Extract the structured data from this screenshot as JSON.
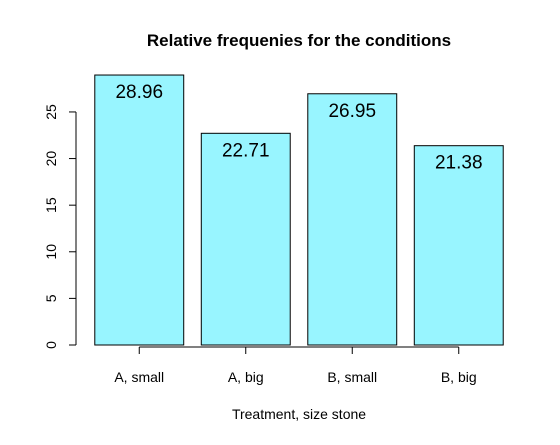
{
  "chart_data": {
    "type": "bar",
    "title": "Relative frequenies for the conditions",
    "xlabel": "Treatment, size stone",
    "ylabel": "",
    "categories": [
      "A, small",
      "A, big",
      "B, small",
      "B, big"
    ],
    "values": [
      28.96,
      22.71,
      26.95,
      21.38
    ],
    "data_labels": [
      "28.96",
      "22.71",
      "26.95",
      "21.38"
    ],
    "yticks": [
      0,
      5,
      10,
      15,
      20,
      25
    ],
    "ytick_labels": [
      "0",
      "5",
      "10",
      "15",
      "20",
      "25"
    ],
    "ylim": [
      0,
      29.5
    ],
    "grid": false,
    "legend": "none",
    "bar_color": "#98f5ff"
  }
}
